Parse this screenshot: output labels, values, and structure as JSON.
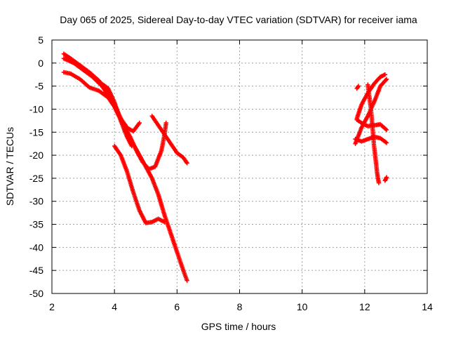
{
  "chart_data": {
    "type": "scatter",
    "title": "Day 065 of 2025, Sidereal Day-to-day VTEC variation (SDTVAR) for receiver iama",
    "xlabel": "GPS time / hours",
    "ylabel": "SDTVAR / TECUs",
    "xlim": [
      2,
      14
    ],
    "ylim": [
      -50,
      5
    ],
    "xticks": [
      2,
      4,
      6,
      8,
      10,
      12,
      14
    ],
    "yticks": [
      5,
      0,
      -5,
      -10,
      -15,
      -20,
      -25,
      -30,
      -35,
      -40,
      -45,
      -50
    ],
    "grid": true,
    "marker": "plus",
    "color": "#ff0000",
    "series": [
      {
        "points": [
          [
            2.38,
            2.0
          ],
          [
            2.6,
            1.0
          ],
          [
            2.9,
            -0.5
          ],
          [
            3.2,
            -2.0
          ],
          [
            3.5,
            -3.8
          ],
          [
            3.8,
            -6.5
          ],
          [
            4.0,
            -9.0
          ],
          [
            4.2,
            -12.0
          ],
          [
            4.4,
            -15.0
          ],
          [
            4.6,
            -17.5
          ],
          [
            4.8,
            -20.0
          ],
          [
            5.0,
            -22.5
          ],
          [
            5.2,
            -25.0
          ],
          [
            5.4,
            -28.5
          ],
          [
            5.6,
            -33.0
          ],
          [
            5.8,
            -37.0
          ],
          [
            6.0,
            -41.0
          ],
          [
            6.2,
            -45.0
          ],
          [
            6.32,
            -47.2
          ]
        ]
      },
      {
        "points": [
          [
            2.38,
            1.0
          ],
          [
            2.7,
            0.0
          ],
          [
            3.0,
            -1.5
          ],
          [
            3.3,
            -3.0
          ],
          [
            3.6,
            -5.0
          ],
          [
            3.9,
            -8.0
          ],
          [
            4.1,
            -11.0
          ],
          [
            4.3,
            -13.5
          ],
          [
            4.5,
            -16.0
          ],
          [
            4.7,
            -19.0
          ],
          [
            4.9,
            -21.5
          ],
          [
            5.1,
            -23.0
          ],
          [
            5.3,
            -22.5
          ],
          [
            5.5,
            -19.0
          ],
          [
            5.6,
            -15.5
          ],
          [
            5.65,
            -13.0
          ]
        ]
      },
      {
        "points": [
          [
            2.38,
            -2.0
          ],
          [
            2.6,
            -2.3
          ],
          [
            2.9,
            -3.5
          ],
          [
            3.2,
            -5.3
          ],
          [
            3.5,
            -6.0
          ],
          [
            3.8,
            -7.5
          ],
          [
            4.0,
            -9.5
          ],
          [
            4.2,
            -12.0
          ],
          [
            4.4,
            -14.0
          ],
          [
            4.6,
            -14.8
          ],
          [
            4.8,
            -13.0
          ]
        ]
      },
      {
        "points": [
          [
            3.5,
            -4.0
          ],
          [
            3.8,
            -5.5
          ],
          [
            4.0,
            -8.5
          ],
          [
            4.2,
            -12.5
          ],
          [
            4.4,
            -16.0
          ],
          [
            4.55,
            -18.0
          ]
        ]
      },
      {
        "points": [
          [
            4.0,
            -18.0
          ],
          [
            4.2,
            -20.0
          ],
          [
            4.4,
            -23.5
          ],
          [
            4.6,
            -28.0
          ],
          [
            4.8,
            -32.0
          ],
          [
            5.0,
            -34.7
          ],
          [
            5.2,
            -34.5
          ],
          [
            5.4,
            -33.8
          ],
          [
            5.6,
            -34.5
          ]
        ]
      },
      {
        "points": [
          [
            5.2,
            -11.5
          ],
          [
            5.5,
            -14.5
          ],
          [
            5.8,
            -17.5
          ],
          [
            6.0,
            -19.5
          ],
          [
            6.2,
            -20.5
          ],
          [
            6.32,
            -21.7
          ]
        ]
      },
      {
        "points": [
          [
            11.75,
            -5.5
          ],
          [
            11.8,
            -5.0
          ]
        ]
      },
      {
        "points": [
          [
            11.7,
            -17.5
          ],
          [
            11.9,
            -14.0
          ],
          [
            12.1,
            -11.5
          ],
          [
            12.3,
            -8.5
          ],
          [
            12.5,
            -5.0
          ],
          [
            12.7,
            -3.5
          ]
        ]
      },
      {
        "points": [
          [
            11.75,
            -12.0
          ],
          [
            11.9,
            -9.0
          ],
          [
            12.1,
            -6.5
          ],
          [
            12.3,
            -4.5
          ],
          [
            12.5,
            -3.0
          ],
          [
            12.65,
            -2.5
          ]
        ]
      },
      {
        "points": [
          [
            11.7,
            -16.5
          ],
          [
            11.9,
            -17.0
          ],
          [
            12.1,
            -16.5
          ],
          [
            12.3,
            -16.0
          ],
          [
            12.5,
            -16.3
          ],
          [
            12.7,
            -17.3
          ]
        ]
      },
      {
        "points": [
          [
            11.75,
            -12.3
          ],
          [
            11.9,
            -13.0
          ],
          [
            12.1,
            -13.7
          ],
          [
            12.3,
            -13.5
          ],
          [
            12.5,
            -13.3
          ],
          [
            12.7,
            -14.5
          ]
        ]
      },
      {
        "points": [
          [
            12.1,
            -4.7
          ],
          [
            12.2,
            -10.0
          ],
          [
            12.3,
            -18.0
          ],
          [
            12.4,
            -24.0
          ],
          [
            12.45,
            -26.0
          ]
        ]
      },
      {
        "points": [
          [
            12.65,
            -25.5
          ],
          [
            12.7,
            -24.8
          ]
        ]
      }
    ]
  }
}
